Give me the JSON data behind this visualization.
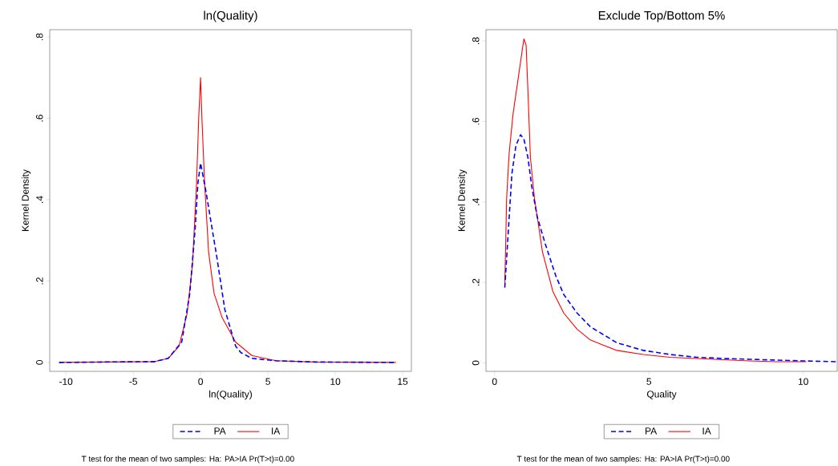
{
  "chart_data": [
    {
      "type": "line",
      "title": "ln(Quality)",
      "xlabel": "ln(Quality)",
      "ylabel": "Kernel Density",
      "legend": "bottom",
      "xlim": [
        -11.2,
        15.65
      ],
      "ylim": [
        -0.022,
        0.818
      ],
      "xticks": [
        -10,
        -5,
        0,
        5,
        10,
        15
      ],
      "yticks": [
        0,
        {
          "value": 0.2,
          "label": ".2"
        },
        {
          "value": 0.4,
          "label": ".4"
        },
        {
          "value": 0.6,
          "label": ".6"
        },
        {
          "value": 0.8,
          "label": ".8"
        }
      ],
      "annotations": [
        "T test for the mean of two samples: Ha: PA>IA Pr(T>t)=0.00"
      ],
      "series": [
        {
          "name": "PA",
          "color": "#0000ff",
          "line_style": "dashed",
          "x": [
            -10.5,
            -3.4,
            -2.4,
            -1.4,
            -0.8,
            -0.4,
            -0.2,
            0,
            0.4,
            0.8,
            1.2,
            1.8,
            2.6,
            3.0,
            3.8,
            5.6,
            8.5,
            14.5
          ],
          "values": [
            0,
            0.002,
            0.01,
            0.05,
            0.17,
            0.33,
            0.44,
            0.49,
            0.42,
            0.34,
            0.26,
            0.13,
            0.04,
            0.024,
            0.01,
            0.004,
            0.001,
            0
          ]
        },
        {
          "name": "IA",
          "color": "#ff0000",
          "line_style": "solid",
          "x": [
            -10.5,
            -3.4,
            -2.4,
            -1.6,
            -1.0,
            -0.6,
            -0.3,
            -0.14,
            0,
            0.1,
            0.3,
            0.6,
            1.0,
            1.6,
            2.6,
            3.8,
            5.6,
            8.5,
            14.5
          ],
          "values": [
            0,
            0.002,
            0.01,
            0.04,
            0.12,
            0.24,
            0.44,
            0.6,
            0.7,
            0.6,
            0.44,
            0.27,
            0.17,
            0.11,
            0.05,
            0.017,
            0.004,
            0.001,
            0
          ]
        }
      ]
    },
    {
      "type": "line",
      "title": "Exclude Top/Bottom 5%",
      "xlabel": "Quality",
      "ylabel": "Kernel Density",
      "legend": "bottom",
      "xlim": [
        -0.28,
        11.1
      ],
      "ylim": [
        -0.021,
        0.828
      ],
      "xticks": [
        0,
        5,
        10
      ],
      "yticks": [
        0,
        {
          "value": 0.2,
          "label": ".2"
        },
        {
          "value": 0.4,
          "label": ".4"
        },
        {
          "value": 0.6,
          "label": ".6"
        },
        {
          "value": 0.8,
          "label": ".8"
        }
      ],
      "annotations": [
        "T test for the mean of two samples: Ha: PA>IA Pr(T>t)=0.00"
      ],
      "series": [
        {
          "name": "PA",
          "color": "#0000ff",
          "line_style": "dashed",
          "x": [
            0.33,
            0.43,
            0.56,
            0.69,
            0.84,
            0.95,
            1.08,
            1.2,
            1.38,
            1.64,
            1.98,
            2.24,
            2.67,
            3.1,
            3.96,
            4.82,
            5.68,
            6.54,
            7.4,
            8.26,
            9.12,
            9.98,
            11.06
          ],
          "values": [
            0.187,
            0.31,
            0.47,
            0.54,
            0.567,
            0.556,
            0.51,
            0.44,
            0.363,
            0.296,
            0.217,
            0.17,
            0.124,
            0.09,
            0.05,
            0.031,
            0.021,
            0.014,
            0.011,
            0.009,
            0.007,
            0.005,
            0.003
          ]
        },
        {
          "name": "IA",
          "color": "#ff0000",
          "line_style": "solid",
          "x": [
            0.33,
            0.39,
            0.47,
            0.6,
            0.77,
            0.9,
            0.95,
            1.02,
            1.08,
            1.16,
            1.29,
            1.55,
            1.89,
            2.24,
            2.67,
            3.1,
            3.53,
            3.96,
            4.82,
            5.68,
            6.54,
            7.4,
            8.26,
            9.12,
            10.1
          ],
          "values": [
            0.193,
            0.41,
            0.52,
            0.62,
            0.71,
            0.78,
            0.805,
            0.79,
            0.675,
            0.51,
            0.41,
            0.276,
            0.177,
            0.124,
            0.084,
            0.057,
            0.044,
            0.031,
            0.021,
            0.014,
            0.011,
            0.008,
            0.005,
            0.003,
            0.003
          ]
        }
      ]
    }
  ]
}
